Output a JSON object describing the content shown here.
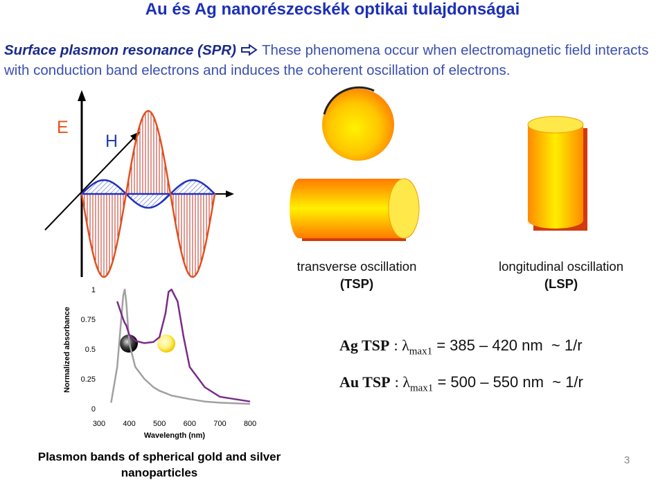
{
  "header": {
    "title": "Au és Ag nanorészecskék optikai tulajdonságai"
  },
  "intro": {
    "term": "Surface plasmon resonance (SPR)",
    "text": "These phenomena occur when electromagnetic field interacts with conduction band electrons and induces the coherent oscillation of electrons."
  },
  "wave": {
    "e_label": "E",
    "h_label": "H"
  },
  "shapes": {
    "transverse": {
      "label": "transverse oscillation",
      "abbr": "(TSP)"
    },
    "longitudinal": {
      "label": "longitudinal oscillation",
      "abbr": "(LSP)"
    }
  },
  "chart_data": {
    "type": "line",
    "xlabel": "Wavelength (nm)",
    "ylabel": "Normalized absorbance",
    "x": [
      340,
      360,
      380,
      385,
      390,
      400,
      420,
      450,
      480,
      500,
      520,
      530,
      540,
      560,
      580,
      600,
      650,
      700,
      800
    ],
    "series": [
      {
        "color": "#a0a0a0",
        "values": [
          0.05,
          0.35,
          0.95,
          1.0,
          0.9,
          0.55,
          0.35,
          0.25,
          0.18,
          0.15,
          0.13,
          0.12,
          0.11,
          0.1,
          0.09,
          0.08,
          0.06,
          0.05,
          0.04
        ]
      },
      {
        "color": "#7a2a8a",
        "values": [
          null,
          0.9,
          0.75,
          0.72,
          0.7,
          0.62,
          0.57,
          0.55,
          0.56,
          0.6,
          0.8,
          0.98,
          1.0,
          0.9,
          0.6,
          0.35,
          0.18,
          0.1,
          0.06
        ]
      }
    ],
    "xlim": [
      300,
      800
    ],
    "xticks": [
      300,
      400,
      500,
      600,
      700,
      800
    ],
    "ylim": [
      0,
      1
    ],
    "yticks": [
      0,
      0.25,
      0.5,
      0.75,
      1
    ],
    "caption": "Plasmon bands of spherical gold and silver nanoparticles"
  },
  "formulas": [
    {
      "metal": "Ag TSP",
      "sep": ": λ",
      "sub": "max1",
      "range": "= 385 – 420 nm  ~ 1/r"
    },
    {
      "metal": "Au TSP",
      "sep": ": λ",
      "sub": "max1",
      "range": "= 500 – 550 nm  ~ 1/r"
    }
  ],
  "footer": {
    "page": "3"
  }
}
